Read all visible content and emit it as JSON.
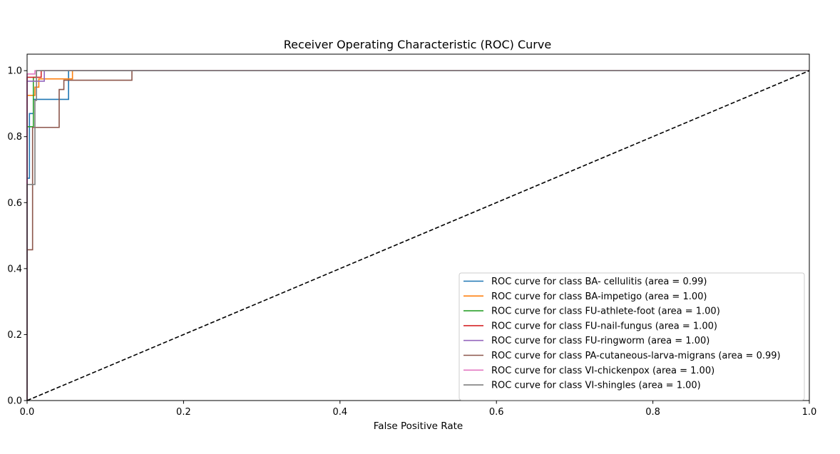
{
  "chart_data": {
    "type": "line",
    "title": "Receiver Operating Characteristic (ROC) Curve",
    "xlabel": "False Positive Rate",
    "ylabel": "",
    "xlim": [
      0,
      1
    ],
    "ylim": [
      0,
      1.05
    ],
    "x_ticks": [
      0.0,
      0.2,
      0.4,
      0.6,
      0.8,
      1.0
    ],
    "x_tick_labels": [
      "0.0",
      "0.2",
      "0.4",
      "0.6",
      "0.8",
      "1.0"
    ],
    "y_ticks": [
      0.0,
      0.2,
      0.4,
      0.6,
      0.8,
      1.0
    ],
    "y_tick_labels": [
      "0.0",
      "0.2",
      "0.4",
      "0.6",
      "0.8",
      "1.0"
    ],
    "grid": false,
    "legend_position": "lower-right",
    "series": [
      {
        "name": "ROC curve for class BA- cellulitis (area = 0.99)",
        "color": "#1f77b4",
        "x": [
          0,
          0,
          0.003,
          0.003,
          0.008,
          0.008,
          0.053,
          0.053,
          1
        ],
        "y": [
          0,
          0.674,
          0.674,
          0.87,
          0.87,
          0.913,
          0.913,
          1,
          1
        ]
      },
      {
        "name": "ROC curve for class BA-impetigo (area = 1.00)",
        "color": "#ff7f0e",
        "x": [
          0,
          0,
          0.01,
          0.01,
          0.015,
          0.015,
          0.02,
          0.02,
          0.058,
          0.058,
          1
        ],
        "y": [
          0,
          0.925,
          0.925,
          0.95,
          0.95,
          0.975,
          0.975,
          0.975,
          0.975,
          1,
          1
        ]
      },
      {
        "name": "ROC curve for class FU-athlete-foot (area = 1.00)",
        "color": "#2ca02c",
        "x": [
          0,
          0,
          0.008,
          0.008,
          0.012,
          0.012,
          1
        ],
        "y": [
          0,
          0.83,
          0.83,
          0.98,
          0.98,
          1,
          1
        ]
      },
      {
        "name": "ROC curve for class FU-nail-fungus (area = 1.00)",
        "color": "#d62728",
        "x": [
          0,
          0,
          0.018,
          0.018,
          1
        ],
        "y": [
          0,
          0.98,
          0.98,
          1,
          1
        ]
      },
      {
        "name": "ROC curve for class FU-ringworm (area = 1.00)",
        "color": "#9467bd",
        "x": [
          0,
          0,
          0.022,
          0.022,
          1
        ],
        "y": [
          0,
          0.968,
          0.968,
          1,
          1
        ]
      },
      {
        "name": "ROC curve for class PA-cutaneous-larva-migrans (area = 0.99)",
        "color": "#8c564b",
        "x": [
          0,
          0,
          0.007,
          0.007,
          0.041,
          0.041,
          0.047,
          0.047,
          0.054,
          0.054,
          0.134,
          0.134,
          1
        ],
        "y": [
          0,
          0.457,
          0.457,
          0.828,
          0.828,
          0.943,
          0.943,
          0.971,
          0.971,
          0.971,
          0.971,
          1,
          1
        ]
      },
      {
        "name": "ROC curve for class VI-chickenpox (area = 1.00)",
        "color": "#e377c2",
        "x": [
          0,
          0,
          0.01,
          0.01,
          1
        ],
        "y": [
          0,
          0.99,
          0.99,
          1,
          1
        ]
      },
      {
        "name": "ROC curve for class VI-shingles (area = 1.00)",
        "color": "#7f7f7f",
        "x": [
          0,
          0,
          0.01,
          0.01,
          0.012,
          0.012,
          1
        ],
        "y": [
          0,
          0.655,
          0.655,
          0.91,
          0.91,
          1,
          1
        ]
      }
    ],
    "reference_line": {
      "style": "dashed",
      "color": "#000000",
      "x": [
        0,
        1
      ],
      "y": [
        0,
        1
      ]
    }
  }
}
